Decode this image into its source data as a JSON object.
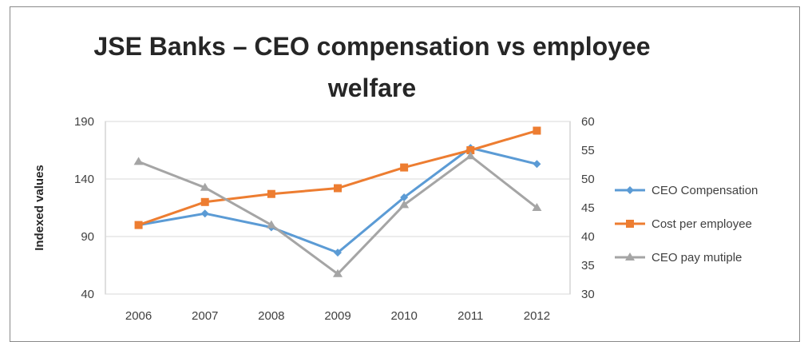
{
  "chart_data": {
    "type": "line",
    "title": "JSE Banks – CEO compensation vs employee welfare",
    "xlabel": "",
    "ylabel": "Indexed values",
    "categories": [
      "2006",
      "2007",
      "2008",
      "2009",
      "2010",
      "2011",
      "2012"
    ],
    "ylim": [
      40,
      190
    ],
    "y_ticks": [
      "190",
      "140",
      "90",
      "40"
    ],
    "y2lim": [
      30,
      60
    ],
    "y2_ticks": [
      "60",
      "55",
      "50",
      "45",
      "40",
      "35",
      "30"
    ],
    "grid": true,
    "legend_position": "right",
    "series": [
      {
        "name": "CEO Compensation",
        "axis": "left",
        "color": "#5B9BD5",
        "marker": "diamond",
        "values": [
          100,
          110,
          98,
          76,
          124,
          167,
          153
        ]
      },
      {
        "name": "Cost per employee",
        "axis": "left",
        "color": "#ED7D31",
        "marker": "square",
        "values": [
          100,
          120,
          127,
          132,
          150,
          165,
          182
        ]
      },
      {
        "name": "CEO pay mutiple",
        "axis": "right",
        "color": "#A5A5A5",
        "marker": "triangle",
        "values": [
          53,
          48.5,
          42,
          33.5,
          45.5,
          54,
          45
        ]
      }
    ]
  }
}
